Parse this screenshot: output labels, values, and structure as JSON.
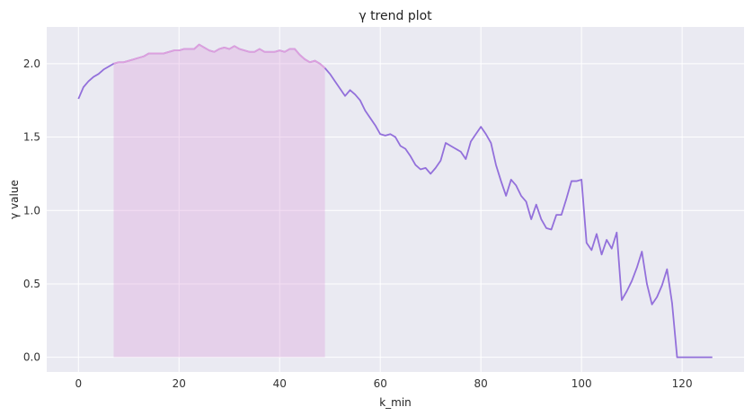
{
  "chart_data": {
    "type": "line",
    "title": "γ trend plot",
    "xlabel": "k_min",
    "ylabel": "γ value",
    "xlim": [
      -6.3,
      132.3
    ],
    "ylim": [
      -0.1,
      2.25
    ],
    "xticks": [
      0,
      20,
      40,
      60,
      80,
      100,
      120
    ],
    "yticks": [
      0.0,
      0.5,
      1.0,
      1.5,
      2.0
    ],
    "xtick_labels": [
      "0",
      "20",
      "40",
      "60",
      "80",
      "100",
      "120"
    ],
    "ytick_labels": [
      "0.0",
      "0.5",
      "1.0",
      "1.5",
      "2.0"
    ],
    "grid": true,
    "colors": {
      "background": "#eaeaf2",
      "grid": "#ffffff",
      "line": "#9370db",
      "highlight_fill": "#dda0dd",
      "highlight_line": "#dda0dd"
    },
    "highlight": {
      "x_start": 7,
      "x_end": 49
    },
    "series": [
      {
        "x": [
          0,
          1,
          2,
          3,
          4,
          5,
          6,
          7,
          8,
          9,
          10,
          11,
          12,
          13,
          14,
          15,
          16,
          17,
          18,
          19,
          20,
          21,
          22,
          23,
          24,
          25,
          26,
          27,
          28,
          29,
          30,
          31,
          32,
          33,
          34,
          35,
          36,
          37,
          38,
          39,
          40,
          41,
          42,
          43,
          44,
          45,
          46,
          47,
          48,
          49,
          50,
          51,
          52,
          53,
          54,
          55,
          56,
          57,
          58,
          59,
          60,
          61,
          62,
          63,
          64,
          65,
          66,
          67,
          68,
          69,
          70,
          71,
          72,
          73,
          74,
          75,
          76,
          77,
          78,
          79,
          80,
          81,
          82,
          83,
          84,
          85,
          86,
          87,
          88,
          89,
          90,
          91,
          92,
          93,
          94,
          95,
          96,
          97,
          98,
          99,
          100,
          101,
          102,
          103,
          104,
          105,
          106,
          107,
          108,
          109,
          110,
          111,
          112,
          113,
          114,
          115,
          116,
          117,
          118,
          119,
          120,
          121,
          122,
          123,
          124,
          125,
          126
        ],
        "y": [
          1.76,
          1.84,
          1.88,
          1.91,
          1.93,
          1.96,
          1.98,
          2.0,
          2.01,
          2.01,
          2.02,
          2.03,
          2.04,
          2.05,
          2.07,
          2.07,
          2.07,
          2.07,
          2.08,
          2.09,
          2.09,
          2.1,
          2.1,
          2.1,
          2.13,
          2.11,
          2.09,
          2.08,
          2.1,
          2.11,
          2.1,
          2.12,
          2.1,
          2.09,
          2.08,
          2.08,
          2.1,
          2.08,
          2.08,
          2.08,
          2.09,
          2.08,
          2.1,
          2.1,
          2.06,
          2.03,
          2.01,
          2.02,
          2.0,
          1.97,
          1.93,
          1.88,
          1.83,
          1.78,
          1.82,
          1.79,
          1.75,
          1.68,
          1.63,
          1.58,
          1.52,
          1.51,
          1.52,
          1.5,
          1.44,
          1.42,
          1.37,
          1.31,
          1.28,
          1.29,
          1.25,
          1.29,
          1.34,
          1.46,
          1.44,
          1.42,
          1.4,
          1.35,
          1.47,
          1.52,
          1.57,
          1.52,
          1.46,
          1.31,
          1.2,
          1.1,
          1.21,
          1.17,
          1.1,
          1.06,
          0.94,
          1.04,
          0.94,
          0.88,
          0.87,
          0.97,
          0.97,
          1.08,
          1.2,
          1.2,
          1.21,
          0.78,
          0.73,
          0.84,
          0.7,
          0.8,
          0.74,
          0.85,
          0.39,
          0.45,
          0.52,
          0.61,
          0.72,
          0.5,
          0.36,
          0.41,
          0.49,
          0.6,
          0.37,
          0.0,
          0.0,
          0.0,
          0.0,
          0.0,
          0.0,
          0.0,
          0.0
        ]
      }
    ]
  }
}
